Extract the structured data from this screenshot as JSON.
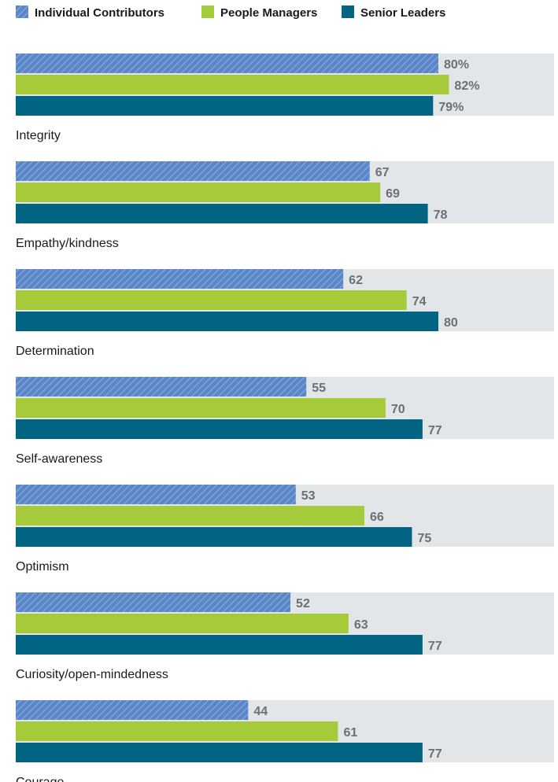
{
  "chart_data": {
    "type": "bar",
    "orientation": "horizontal",
    "legend_position": "top-left",
    "xlim": [
      0,
      100
    ],
    "grid": false,
    "categories": [
      "Integrity",
      "Empathy/kindness",
      "Determination",
      "Self-awareness",
      "Optimism",
      "Curiosity/open-mindedness",
      "Courage"
    ],
    "series": [
      {
        "name": "Individual Contributors",
        "color": "#5b87c9",
        "pattern": "hatched",
        "values": [
          80,
          67,
          62,
          55,
          53,
          52,
          44
        ],
        "labels": [
          "80%",
          "67",
          "62",
          "55",
          "53",
          "52",
          "44"
        ]
      },
      {
        "name": "People Managers",
        "color": "#a6cb3a",
        "pattern": "solid",
        "values": [
          82,
          69,
          74,
          70,
          66,
          63,
          61
        ],
        "labels": [
          "82%",
          "69",
          "74",
          "70",
          "66",
          "63",
          "61"
        ]
      },
      {
        "name": "Senior Leaders",
        "color": "#006482",
        "pattern": "solid",
        "values": [
          79,
          78,
          80,
          77,
          75,
          77,
          77
        ],
        "labels": [
          "79%",
          "78",
          "80",
          "77",
          "75",
          "77",
          "77"
        ]
      }
    ],
    "background_bar_color": "#e2e6e8",
    "value_label_color": "#6d7073"
  }
}
